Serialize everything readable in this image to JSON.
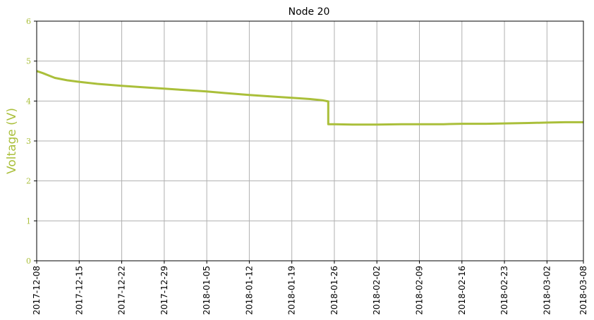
{
  "chart_data": {
    "type": "line",
    "title": "Node 20",
    "xlabel": "",
    "ylabel": "Voltage (V)",
    "ylim": [
      0,
      6
    ],
    "yticks": [
      "0",
      "1",
      "2",
      "3",
      "4",
      "5",
      "6"
    ],
    "xlim": [
      "2017-12-08",
      "2018-03-08"
    ],
    "xticks": [
      "2017-12-08",
      "2017-12-15",
      "2017-12-22",
      "2017-12-29",
      "2018-01-05",
      "2018-01-12",
      "2018-01-19",
      "2018-01-26",
      "2018-02-02",
      "2018-02-09",
      "2018-02-16",
      "2018-02-23",
      "2018-03-02",
      "2018-03-08"
    ],
    "grid": true,
    "line_color": "#aabf3a",
    "series": [
      {
        "x": [
          "2017-12-08",
          "2017-12-09",
          "2017-12-10",
          "2017-12-11",
          "2017-12-13",
          "2017-12-15",
          "2017-12-18",
          "2017-12-22",
          "2017-12-25",
          "2017-12-29",
          "2018-01-01",
          "2018-01-05",
          "2018-01-08",
          "2018-01-12",
          "2018-01-15",
          "2018-01-19",
          "2018-01-22",
          "2018-01-24",
          "2018-01-25",
          "2018-01-25",
          "2018-01-26",
          "2018-01-29",
          "2018-02-02",
          "2018-02-06",
          "2018-02-09",
          "2018-02-13",
          "2018-02-16",
          "2018-02-20",
          "2018-02-23",
          "2018-02-27",
          "2018-03-02",
          "2018-03-05",
          "2018-03-08"
        ],
        "y": [
          4.75,
          4.7,
          4.64,
          4.58,
          4.52,
          4.48,
          4.43,
          4.38,
          4.35,
          4.31,
          4.28,
          4.24,
          4.2,
          4.15,
          4.12,
          4.08,
          4.05,
          4.02,
          3.99,
          3.42,
          3.42,
          3.41,
          3.41,
          3.42,
          3.42,
          3.42,
          3.43,
          3.43,
          3.44,
          3.45,
          3.46,
          3.47,
          3.47
        ]
      }
    ]
  }
}
